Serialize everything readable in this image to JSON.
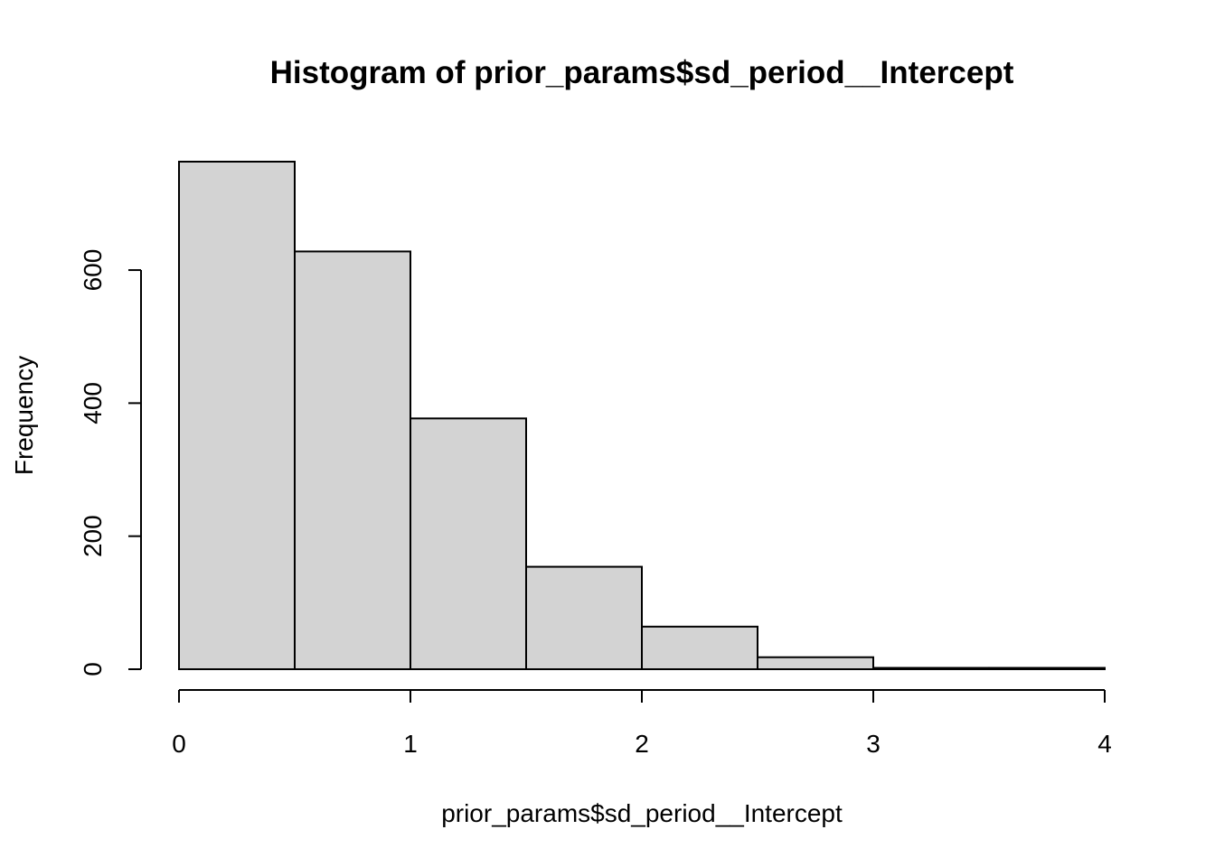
{
  "chart_data": {
    "type": "bar",
    "title": "Histogram of prior_params$sd_period__Intercept",
    "xlabel": "prior_params$sd_period__Intercept",
    "ylabel": "Frequency",
    "bins": [
      {
        "from": 0.0,
        "to": 0.5,
        "count": 763
      },
      {
        "from": 0.5,
        "to": 1.0,
        "count": 628
      },
      {
        "from": 1.0,
        "to": 1.5,
        "count": 377
      },
      {
        "from": 1.5,
        "to": 2.0,
        "count": 154
      },
      {
        "from": 2.0,
        "to": 2.5,
        "count": 64
      },
      {
        "from": 2.5,
        "to": 3.0,
        "count": 18
      },
      {
        "from": 3.0,
        "to": 3.5,
        "count": 2
      },
      {
        "from": 3.5,
        "to": 4.0,
        "count": 2
      }
    ],
    "xlim": [
      0,
      4
    ],
    "ylim": [
      0,
      763
    ],
    "x_ticks": [
      "0",
      "1",
      "2",
      "3",
      "4"
    ],
    "y_ticks": [
      "0",
      "200",
      "400",
      "600"
    ],
    "bar_fill": "#d3d3d3",
    "bar_stroke": "#000000",
    "grid": false,
    "legend": "none"
  }
}
